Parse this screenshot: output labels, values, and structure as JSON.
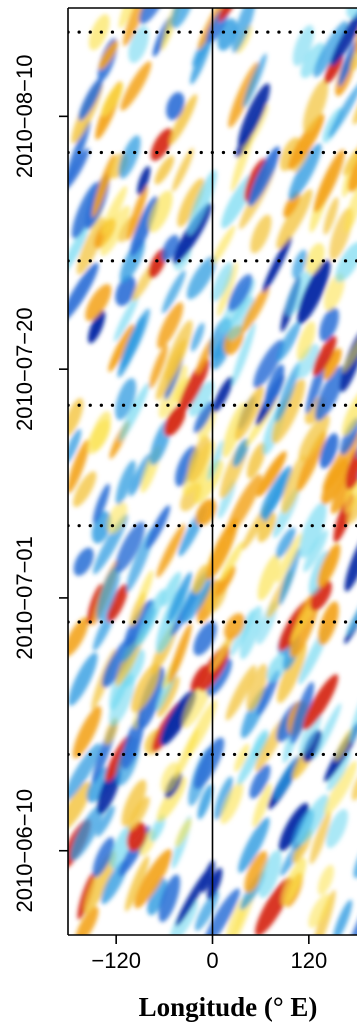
{
  "chart_data": {
    "type": "heatmap",
    "title": "",
    "xlabel": "Longitude (° E)",
    "ylabel": "",
    "x_ticks": [
      {
        "value": -120,
        "label": "−120"
      },
      {
        "value": 0,
        "label": "0"
      },
      {
        "value": 120,
        "label": "120"
      }
    ],
    "y_ticks": [
      {
        "value": "2010-06-10",
        "label": "2010−06−10"
      },
      {
        "value": "2010-07-01",
        "label": "2010−07−01"
      },
      {
        "value": "2010-07-20",
        "label": "2010−07−20"
      },
      {
        "value": "2010-08-10",
        "label": "2010−08−10"
      }
    ],
    "xlim": [
      -180,
      180
    ],
    "ylim": [
      "2010-06-03",
      "2010-08-19"
    ],
    "reference_lines": {
      "vertical_solid_x": 0,
      "horizontal_dotted_dates": [
        "2010-06-18",
        "2010-06-29",
        "2010-07-07",
        "2010-07-17",
        "2010-07-29",
        "2010-08-07",
        "2010-08-17"
      ]
    },
    "colors": {
      "strong_positive": "#d7301f",
      "positive": "#f3a21a",
      "weak_positive": "#fbe24a",
      "weak_negative": "#6ad6f0",
      "negative": "#2b6fd6",
      "strong_negative": "#0b2fa8"
    }
  }
}
